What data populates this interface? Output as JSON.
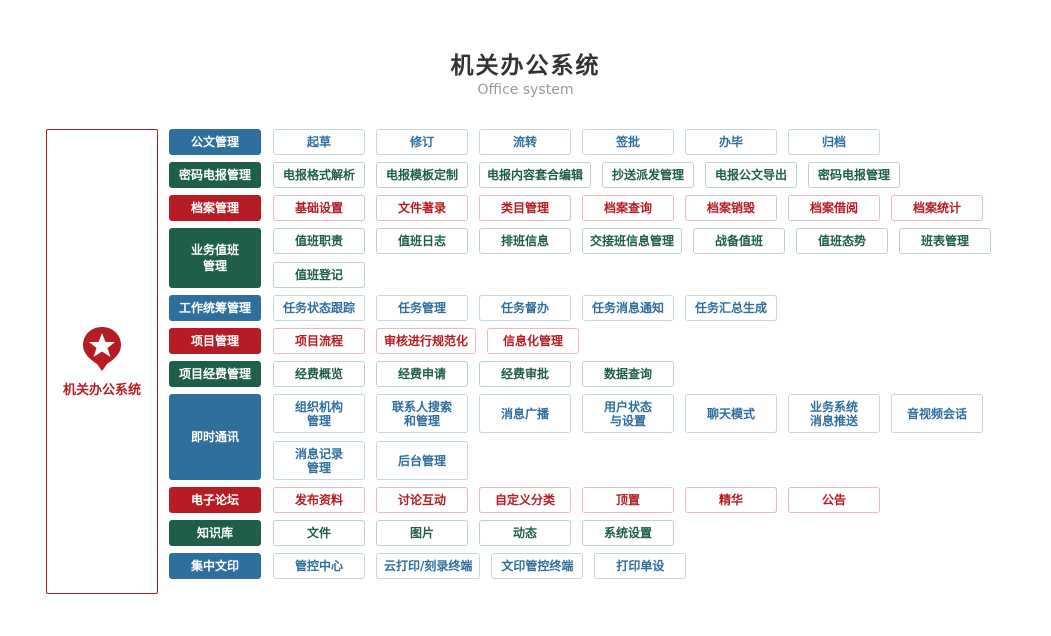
{
  "title": "机关办公系统",
  "subtitle": "Office system",
  "left_panel": {
    "label": "机关办公系统",
    "icon": "star-pin-icon"
  },
  "colors": {
    "blue": "#2f6f9e",
    "green": "#1f5f4a",
    "red": "#b71c24"
  },
  "modules": [
    {
      "name": "公文管理",
      "color": "blue",
      "items": [
        "起草",
        "修订",
        "流转",
        "签批",
        "办毕",
        "归档"
      ]
    },
    {
      "name": "密码电报管理",
      "color": "green",
      "items": [
        "电报格式解析",
        "电报模板定制",
        "电报内容套合编辑",
        "抄送派发管理",
        "电报公文导出",
        "密码电报管理"
      ]
    },
    {
      "name": "档案管理",
      "color": "red",
      "items": [
        "基础设置",
        "文件著录",
        "类目管理",
        "档案查询",
        "档案销毁",
        "档案借阅",
        "档案统计"
      ]
    },
    {
      "name": "业务值班\n管理",
      "color": "green",
      "items": [
        "值班职责",
        "值班日志",
        "排班信息",
        "交接班信息管理",
        "战备值班",
        "值班态势",
        "班表管理",
        "值班登记"
      ]
    },
    {
      "name": "工作统筹管理",
      "color": "blue",
      "items": [
        "任务状态跟踪",
        "任务管理",
        "任务督办",
        "任务消息通知",
        "任务汇总生成"
      ]
    },
    {
      "name": "项目管理",
      "color": "red",
      "items": [
        "项目流程",
        "审核进行规范化",
        "信息化管理"
      ]
    },
    {
      "name": "项目经费管理",
      "color": "green",
      "items": [
        "经费概览",
        "经费申请",
        "经费审批",
        "数据查询"
      ]
    },
    {
      "name": "即时通讯",
      "color": "blue",
      "tall": true,
      "items": [
        "组织机构\n管理",
        "联系人搜索\n和管理",
        "消息广播",
        "用户状态\n与设置",
        "聊天模式",
        "业务系统\n消息推送",
        "音视频会话",
        "消息记录\n管理",
        "后台管理"
      ]
    },
    {
      "name": "电子论坛",
      "color": "red",
      "items": [
        "发布资料",
        "讨论互动",
        "自定义分类",
        "顶置",
        "精华",
        "公告"
      ]
    },
    {
      "name": "知识库",
      "color": "green",
      "items": [
        "文件",
        "图片",
        "动态",
        "系统设置"
      ]
    },
    {
      "name": "集中文印",
      "color": "blue",
      "items": [
        "管控中心",
        "云打印/刻录终端",
        "文印管控终端",
        "打印单设"
      ]
    }
  ]
}
